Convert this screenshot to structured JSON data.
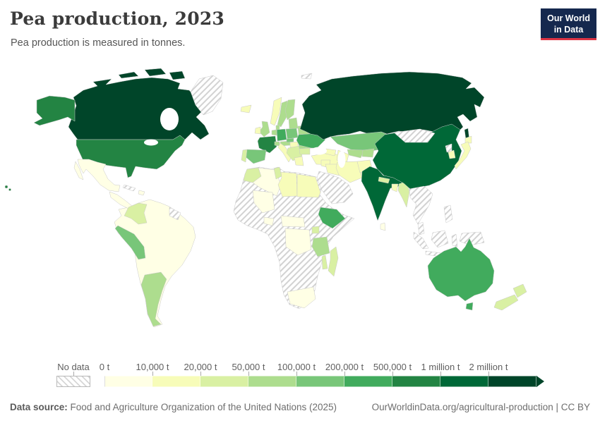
{
  "header": {
    "title": "Pea production, 2023",
    "subtitle": "Pea production is measured in tonnes.",
    "logo": {
      "line1": "Our World",
      "line2": "in Data",
      "bg": "#15284e",
      "accent": "#dc3444"
    }
  },
  "chart_data": {
    "type": "choropleth",
    "title": "Pea production, 2023",
    "unit": "tonnes",
    "year": 2023,
    "bins": [
      "0 t",
      "10,000 t",
      "20,000 t",
      "50,000 t",
      "100,000 t",
      "200,000 t",
      "500,000 t",
      "1 million t",
      "2 million t"
    ],
    "bin_colors": [
      "#ffffe5",
      "#f7fcb9",
      "#d9f0a3",
      "#addd8e",
      "#78c679",
      "#41ab5d",
      "#238443",
      "#006837",
      "#004529"
    ],
    "no_data_style": "gray-diagonal-hatch",
    "country_bins": {
      "canada": 8,
      "united-states": 6,
      "greenland": "nodata",
      "mexico": 0,
      "central-america": 0,
      "cuba": "nodata",
      "hispaniola": 0,
      "south-america": 0,
      "colombia": 2,
      "peru": 4,
      "argentina": 3,
      "guyanas": "nodata",
      "iceland": 1,
      "norway": 1,
      "sweden": 3,
      "finland": 3,
      "united-kingdom": 3,
      "ireland": 1,
      "denmark": 3,
      "baltics": 3,
      "belarus": 3,
      "poland": 4,
      "germany": 5,
      "netherlands": 3,
      "france": 6,
      "spain": 4,
      "portugal": 2,
      "italy": 1,
      "switzerland": 3,
      "austria": 3,
      "czechia": 4,
      "hungary": 1,
      "balkans": 2,
      "greece": 1,
      "romania": 3,
      "bulgaria": 2,
      "ukraine": 5,
      "turkey": 1,
      "caucasus": 1,
      "russia": 8,
      "svalbard": "nodata",
      "kazakhstan": 4,
      "uzbekistan": 3,
      "turkmenistan": 1,
      "kyrgyzstan": 3,
      "syria": 1,
      "iraq": 1,
      "iran": 1,
      "arabia": "nodata",
      "afghanistan": 1,
      "pakistan": 1,
      "india": 7,
      "nepal": 2,
      "bangladesh": 1,
      "sri-lanka": 0,
      "myanmar": 2,
      "china": 7,
      "mongolia": "nodata",
      "north-korea": "nodata",
      "south-korea": 1,
      "japan": 1,
      "indochina": "nodata",
      "malay-peninsula": "nodata",
      "sumatra": "nodata",
      "java": "nodata",
      "borneo": "nodata",
      "sulawesi": "nodata",
      "philippines": "nodata",
      "new-guinea": "nodata",
      "australia": 5,
      "new-zealand": 2,
      "africa": "nodata",
      "morocco": 2,
      "algeria": 0,
      "tunisia": 2,
      "libya": 1,
      "egypt": 1,
      "mali": 0,
      "ghana": 0,
      "cameroon": 0,
      "dr-congo": 0,
      "ethiopia": 5,
      "uganda": 2,
      "tanzania": 3,
      "malawi": 2,
      "madagascar": 2,
      "south-africa": 0
    }
  },
  "legend": {
    "no_data_label": "No data"
  },
  "footer": {
    "source_label": "Data source:",
    "source_text": " Food and Agriculture Organization of the United Nations (2025)",
    "license_text": "OurWorldinData.org/agricultural-production | CC BY"
  }
}
